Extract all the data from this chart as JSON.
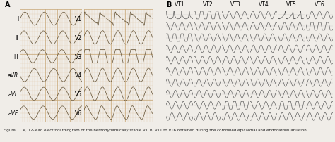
{
  "fig_width": 4.74,
  "fig_height": 2.03,
  "dpi": 100,
  "bg_color": "#f0ede8",
  "ecg_bg_A_left": "#f5e8d8",
  "ecg_bg_A_right": "#f0e0c8",
  "ecg_line_color": "#6b5a3e",
  "grid_fine_color": "#e0c8a8",
  "grid_coarse_color": "#c8a878",
  "panel_B_bg": "#e8e8e8",
  "panel_B_line": "#555555",
  "panel_B_grid": "#cccccc",
  "panel_A_label": "A",
  "panel_B_label": "B",
  "limb_leads": [
    "I",
    "II",
    "III",
    "aVR",
    "aVL",
    "aVF"
  ],
  "precordial_leads": [
    "V1",
    "V2",
    "V3",
    "V4",
    "V5",
    "V6"
  ],
  "vt_labels": [
    "VT1",
    "VT2",
    "VT3",
    "VT4",
    "VT5",
    "VT6"
  ],
  "caption": "Figure 1   A, 12-lead electrocardiogram of the hemodynamically stable VT. B, VT1 to VT6 obtained during the combined epicardial and endocardial ablation.",
  "caption_fontsize": 4.0,
  "label_fontsize": 5.5,
  "vt_label_fontsize": 5.5,
  "panel_label_fontsize": 7
}
